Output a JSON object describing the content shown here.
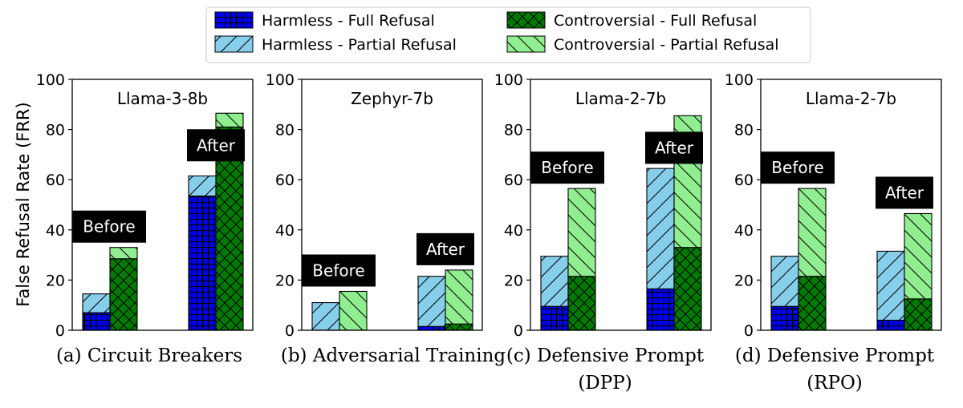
{
  "chart_data": {
    "type": "bar",
    "stacked": true,
    "ylabel": "False Refusal Rate (FRR)",
    "ylim": [
      0,
      100
    ],
    "yticks": [
      0,
      20,
      40,
      60,
      80,
      100
    ],
    "legend": {
      "placement": "top-center",
      "entries": [
        {
          "key": "harmless_full",
          "label": "Harmless - Full Refusal"
        },
        {
          "key": "harmless_partial",
          "label": "Harmless - Partial Refusal"
        },
        {
          "key": "controversial_full",
          "label": "Controversial - Full Refusal"
        },
        {
          "key": "controversial_partial",
          "label": "Controversial - Partial Refusal"
        }
      ]
    },
    "series_colors": {
      "harmless_full": "#0000ee",
      "harmless_partial": "#87ceeb",
      "controversial_full": "#007a00",
      "controversial_partial": "#90ee90"
    },
    "panels": [
      {
        "title": "Llama-3-8b",
        "caption": [
          "(a) Circuit Breakers"
        ],
        "groups": [
          {
            "label": "Before",
            "harmless_full": 7,
            "harmless_partial": 7.5,
            "controversial_full": 28.5,
            "controversial_partial": 4.5
          },
          {
            "label": "After",
            "harmless_full": 53.5,
            "harmless_partial": 8,
            "controversial_full": 81,
            "controversial_partial": 5.5
          }
        ]
      },
      {
        "title": "Zephyr-7b",
        "caption": [
          "(b) Adversarial Training"
        ],
        "groups": [
          {
            "label": "Before",
            "harmless_full": 0,
            "harmless_partial": 11,
            "controversial_full": 0,
            "controversial_partial": 15.5
          },
          {
            "label": "After",
            "harmless_full": 1.5,
            "harmless_partial": 20,
            "controversial_full": 2.5,
            "controversial_partial": 21.5
          }
        ]
      },
      {
        "title": "Llama-2-7b",
        "caption": [
          "(c) Defensive Prompt",
          "(DPP)"
        ],
        "groups": [
          {
            "label": "Before",
            "harmless_full": 9.5,
            "harmless_partial": 20,
            "controversial_full": 21.5,
            "controversial_partial": 35
          },
          {
            "label": "After",
            "harmless_full": 16.5,
            "harmless_partial": 48,
            "controversial_full": 33,
            "controversial_partial": 52.5
          }
        ]
      },
      {
        "title": "Llama-2-7b",
        "caption": [
          "(d) Defensive Prompt",
          "(RPO)"
        ],
        "groups": [
          {
            "label": "Before",
            "harmless_full": 9.5,
            "harmless_partial": 20,
            "controversial_full": 21.5,
            "controversial_partial": 35
          },
          {
            "label": "After",
            "harmless_full": 4,
            "harmless_partial": 27.5,
            "controversial_full": 12.5,
            "controversial_partial": 34
          }
        ]
      }
    ]
  }
}
